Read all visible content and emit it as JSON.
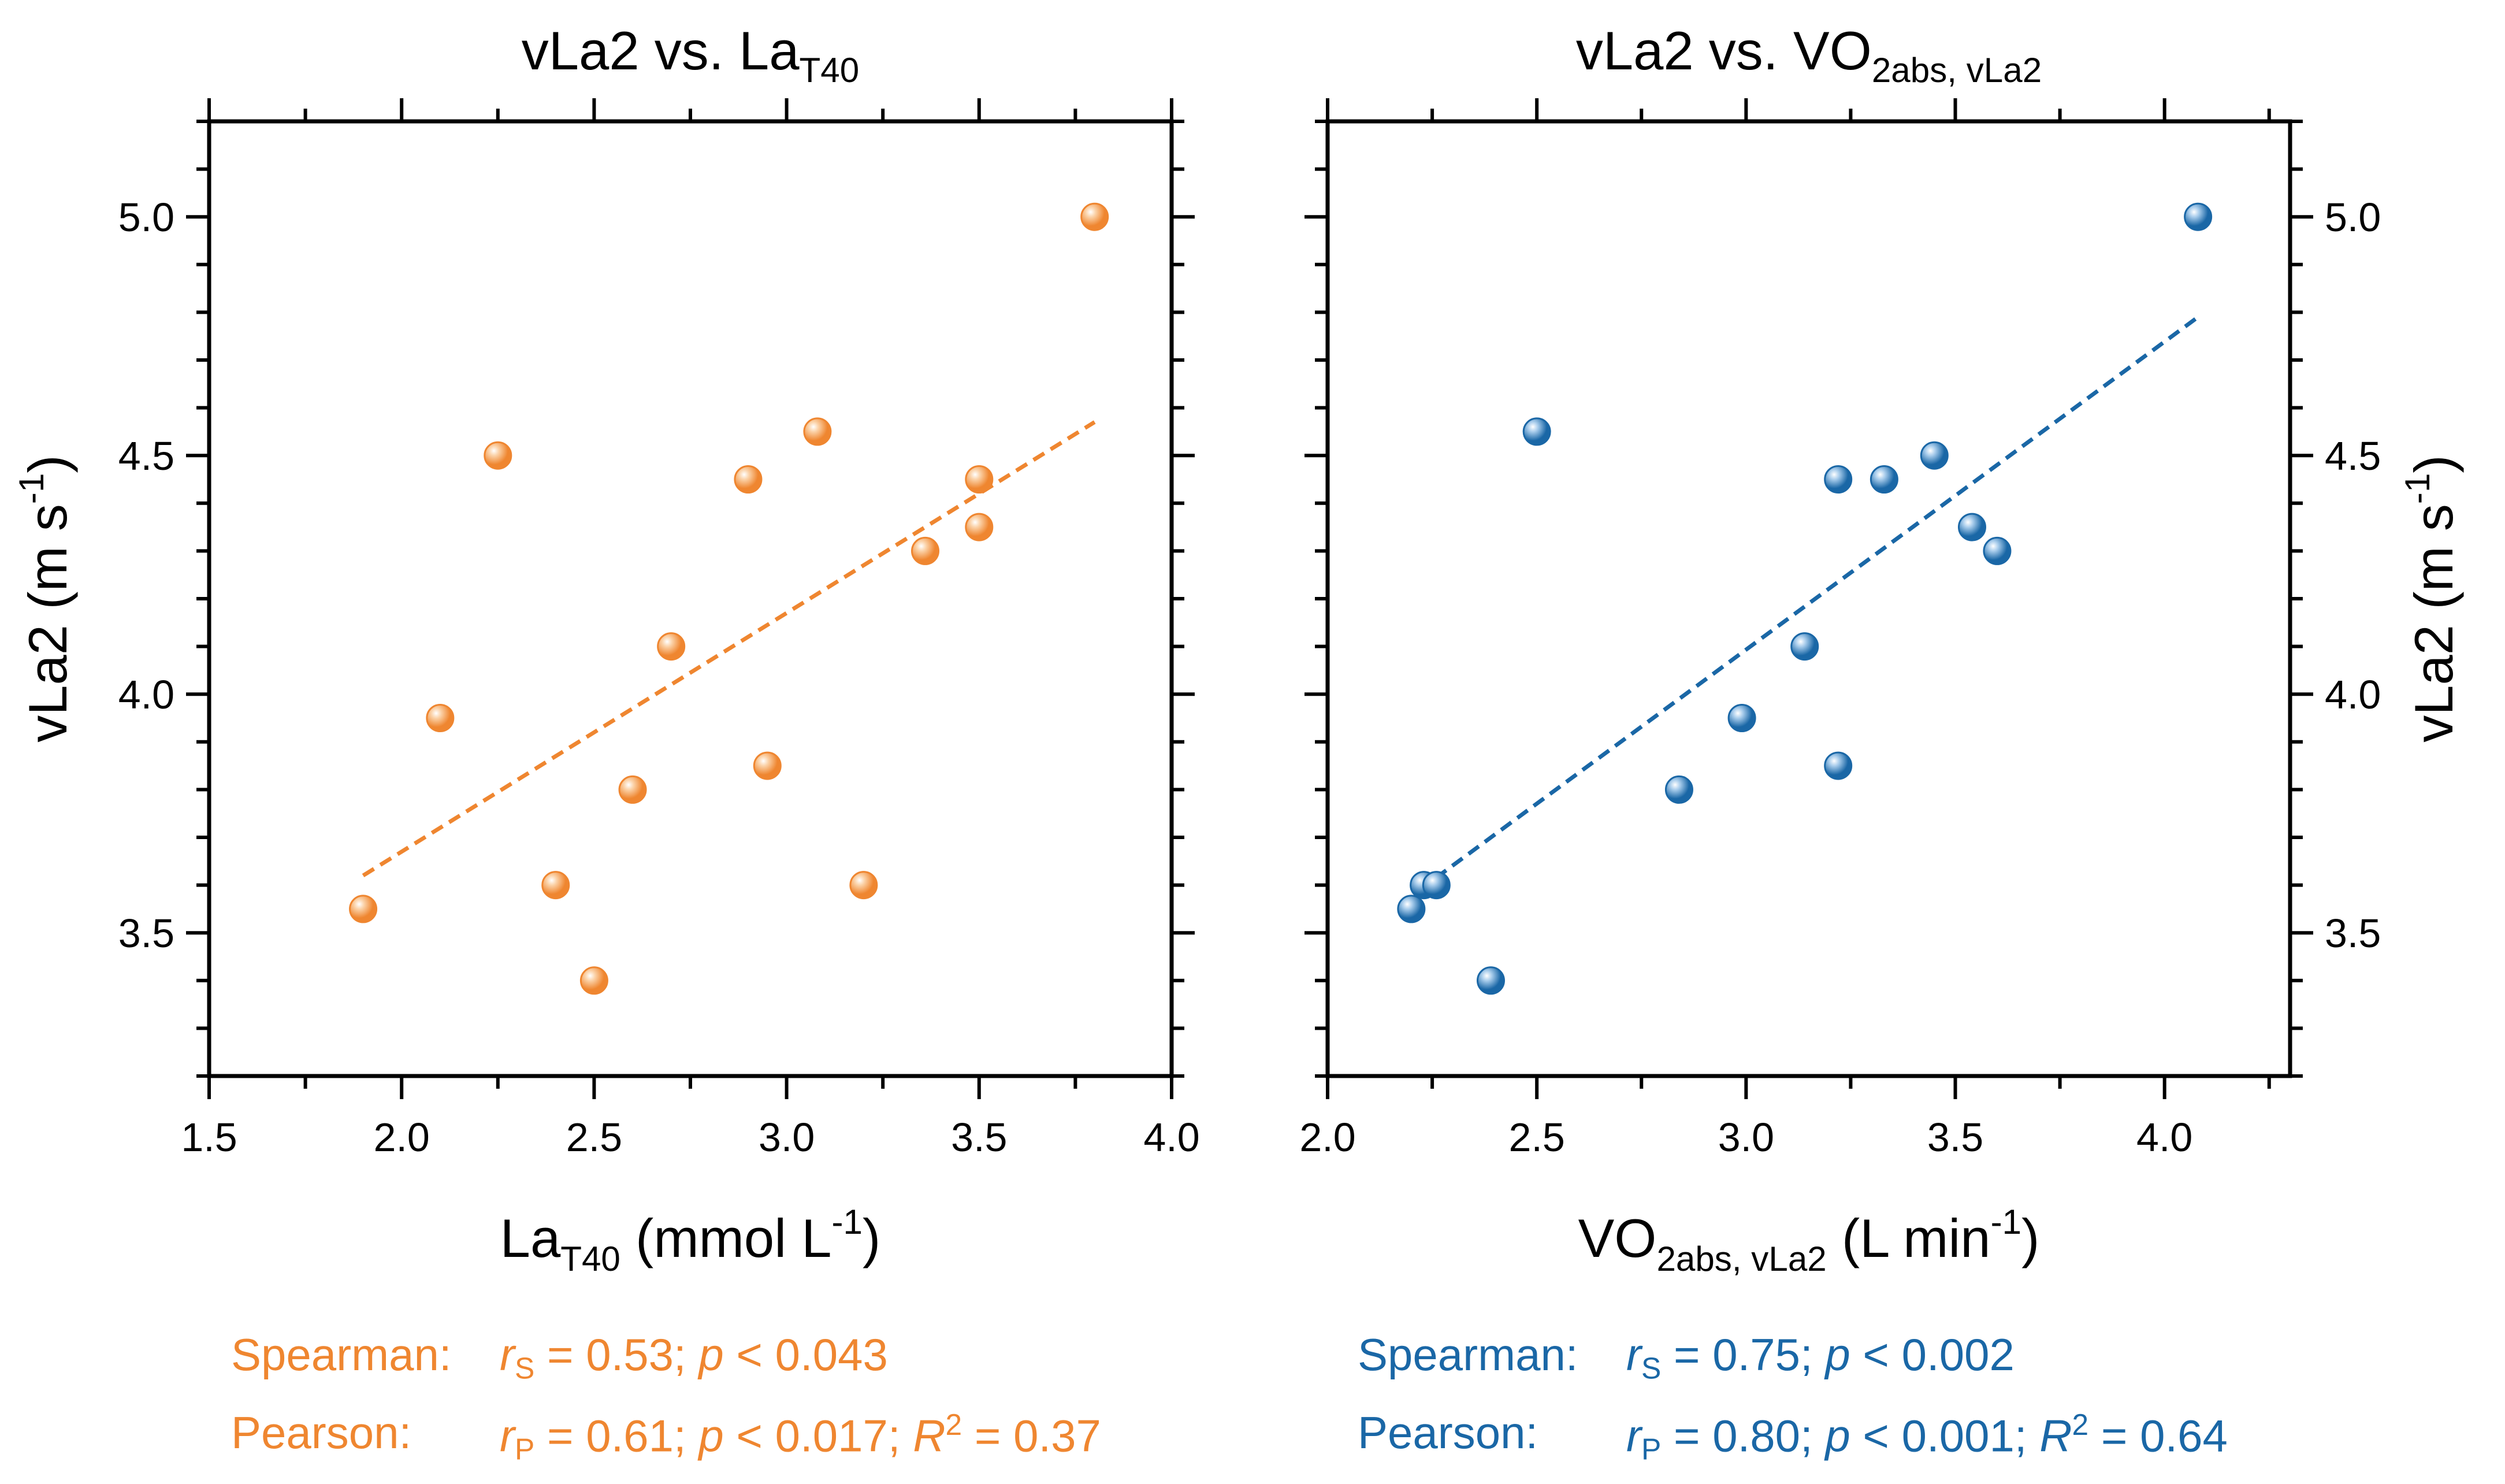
{
  "chart_data": [
    {
      "type": "scatter",
      "title_main": "vLa2 vs. La",
      "title_sub": "T40",
      "xlabel_main": "La",
      "xlabel_sub": "T40",
      "xlabel_unit_pre": " (mmol L",
      "xlabel_unit_sup": "-1",
      "xlabel_unit_post": ")",
      "ylabel_main": "vLa2 (m s",
      "ylabel_sup": "-1",
      "ylabel_post": ")",
      "xlim": [
        1.5,
        4.0
      ],
      "ylim": [
        3.2,
        5.2
      ],
      "x_ticks": [
        "1.5",
        "2.0",
        "2.5",
        "3.0",
        "3.5",
        "4.0"
      ],
      "y_ticks": [
        "3.5",
        "4.0",
        "4.5",
        "5.0"
      ],
      "color": "#ef8630",
      "marker_highlight": "#fbd2a8",
      "points": [
        {
          "x": 1.9,
          "y": 3.55
        },
        {
          "x": 2.1,
          "y": 3.95
        },
        {
          "x": 2.25,
          "y": 4.5
        },
        {
          "x": 2.4,
          "y": 3.6
        },
        {
          "x": 2.5,
          "y": 3.4
        },
        {
          "x": 2.6,
          "y": 3.8
        },
        {
          "x": 2.7,
          "y": 4.1
        },
        {
          "x": 2.9,
          "y": 4.45
        },
        {
          "x": 2.95,
          "y": 3.85
        },
        {
          "x": 3.08,
          "y": 4.55
        },
        {
          "x": 3.2,
          "y": 3.6
        },
        {
          "x": 3.36,
          "y": 4.3
        },
        {
          "x": 3.5,
          "y": 4.45
        },
        {
          "x": 3.5,
          "y": 4.35
        },
        {
          "x": 3.8,
          "y": 5.0
        }
      ],
      "trendline": {
        "x1": 1.9,
        "y1": 3.62,
        "x2": 3.8,
        "y2": 4.57
      }
    },
    {
      "type": "scatter",
      "title_main": "vLa2 vs. VO",
      "title_sub": "2abs, vLa2",
      "xlabel_main": "VO",
      "xlabel_sub": "2abs, vLa2",
      "xlabel_unit_pre": " (L min",
      "xlabel_unit_sup": "-1",
      "xlabel_unit_post": ")",
      "ylabel_main": "vLa2 (m s",
      "ylabel_sup": "-1",
      "ylabel_post": ")",
      "xlim": [
        2.0,
        4.3
      ],
      "ylim": [
        3.2,
        5.2
      ],
      "x_ticks": [
        "2.0",
        "2.5",
        "3.0",
        "3.5",
        "4.0"
      ],
      "y_ticks": [
        "3.5",
        "4.0",
        "4.5",
        "5.0"
      ],
      "color": "#1a67a6",
      "marker_highlight": "#a9cdec",
      "points": [
        {
          "x": 2.2,
          "y": 3.55
        },
        {
          "x": 2.23,
          "y": 3.6
        },
        {
          "x": 2.26,
          "y": 3.6
        },
        {
          "x": 2.39,
          "y": 3.4
        },
        {
          "x": 2.5,
          "y": 4.55
        },
        {
          "x": 2.84,
          "y": 3.8
        },
        {
          "x": 2.99,
          "y": 3.95
        },
        {
          "x": 3.14,
          "y": 4.1
        },
        {
          "x": 3.22,
          "y": 4.45
        },
        {
          "x": 3.22,
          "y": 3.85
        },
        {
          "x": 3.33,
          "y": 4.45
        },
        {
          "x": 3.45,
          "y": 4.5
        },
        {
          "x": 3.54,
          "y": 4.35
        },
        {
          "x": 3.6,
          "y": 4.3
        },
        {
          "x": 4.08,
          "y": 5.0
        }
      ],
      "trendline": {
        "x1": 2.22,
        "y1": 3.59,
        "x2": 4.08,
        "y2": 4.79
      }
    }
  ],
  "stats": {
    "left": {
      "spearman_label": "Spearman:",
      "spearman_r": "r",
      "spearman_r_sub": "S",
      "spearman_rest1": " = 0.53; ",
      "spearman_p": "p",
      "spearman_rest2": " < 0.043",
      "pearson_label": "Pearson:",
      "pearson_r": "r",
      "pearson_r_sub": "P",
      "pearson_rest1": " = 0.61; ",
      "pearson_p": "p",
      "pearson_rest2": " < 0.017; ",
      "pearson_R": "R",
      "pearson_R_sup": "2",
      "pearson_rest3": " = 0.37"
    },
    "right": {
      "spearman_label": "Spearman:",
      "spearman_r": "r",
      "spearman_r_sub": "S",
      "spearman_rest1": " = 0.75; ",
      "spearman_p": "p",
      "spearman_rest2": " < 0.002",
      "pearson_label": "Pearson:",
      "pearson_r": "r",
      "pearson_r_sub": "P",
      "pearson_rest1": " = 0.80; ",
      "pearson_p": "p",
      "pearson_rest2": " < 0.001; ",
      "pearson_R": "R",
      "pearson_R_sup": "2",
      "pearson_rest3": " = 0.64"
    }
  }
}
